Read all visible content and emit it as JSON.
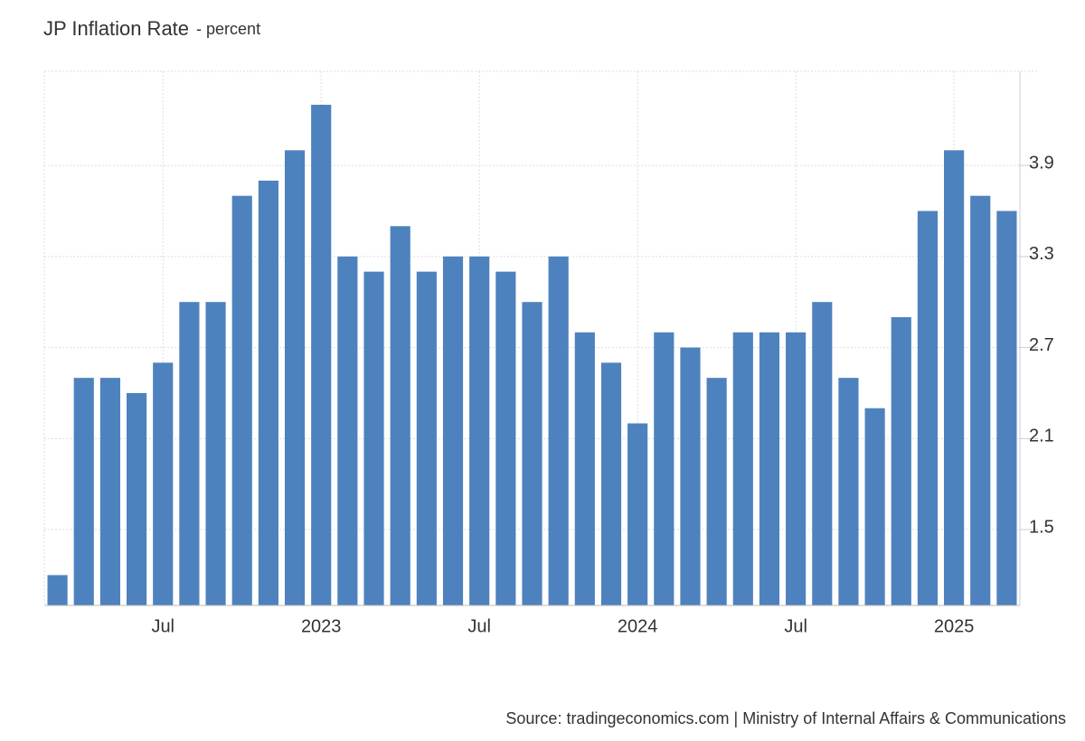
{
  "chart_data": {
    "type": "bar",
    "title": "JP Inflation Rate",
    "subtitle": "- percent",
    "source": "Source: tradingeconomics.com | Ministry of Internal Affairs & Communications",
    "categories": [
      null,
      null,
      null,
      null,
      "Jul",
      null,
      null,
      null,
      null,
      null,
      "2023",
      null,
      null,
      null,
      null,
      null,
      "Jul",
      null,
      null,
      null,
      null,
      null,
      "2024",
      null,
      null,
      null,
      null,
      null,
      "Jul",
      null,
      null,
      null,
      null,
      null,
      "2025",
      null,
      null
    ],
    "values": [
      1.2,
      2.5,
      2.5,
      2.4,
      2.6,
      3.0,
      3.0,
      3.7,
      3.8,
      4.0,
      4.3,
      3.3,
      3.2,
      3.5,
      3.2,
      3.3,
      3.3,
      3.2,
      3.0,
      3.3,
      2.8,
      2.6,
      2.2,
      2.8,
      2.7,
      2.5,
      2.8,
      2.8,
      2.8,
      3.0,
      2.5,
      2.3,
      2.9,
      3.6,
      4.0,
      3.7,
      3.6
    ],
    "color": "#4d82be",
    "ylim": [
      1.0,
      4.52
    ],
    "yticks": [
      1.5,
      2.1,
      2.7,
      3.3,
      3.9
    ],
    "grid": true
  }
}
